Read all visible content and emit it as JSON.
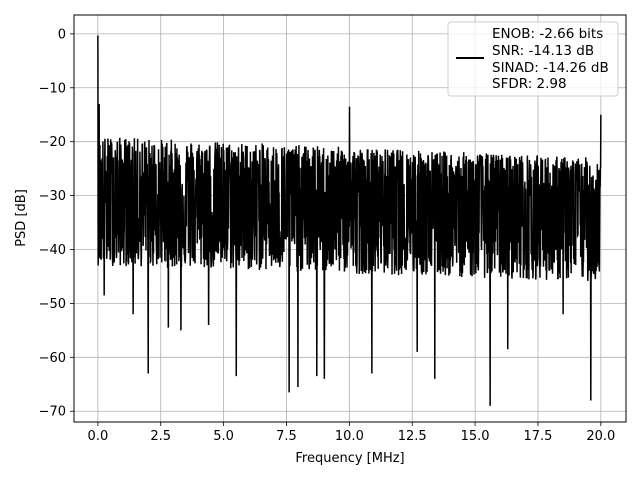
{
  "chart_data": {
    "type": "line",
    "title": "",
    "xlabel": "Frequency [MHz]",
    "ylabel": "PSD [dB]",
    "xlim": [
      -0.95,
      21.0
    ],
    "ylim": [
      -72.0,
      3.5
    ],
    "grid": true,
    "legend_position": "top-right",
    "xticks": [
      0.0,
      2.5,
      5.0,
      7.5,
      10.0,
      12.5,
      15.0,
      17.5,
      20.0
    ],
    "xtick_labels": [
      "0.0",
      "2.5",
      "5.0",
      "7.5",
      "10.0",
      "12.5",
      "15.0",
      "17.5",
      "20.0"
    ],
    "yticks": [
      0,
      -10,
      -20,
      -30,
      -40,
      -50,
      -60,
      -70
    ],
    "ytick_labels": [
      "0",
      "−10",
      "−20",
      "−30",
      "−40",
      "−50",
      "−60",
      "−70"
    ],
    "legend": [
      "ENOB: -2.66 bits",
      "SNR: -14.13 dB",
      "SINAD: -14.26 dB",
      "SFDR: 2.98"
    ],
    "series": [
      {
        "color": "#000000",
        "x_range": [
          0.0,
          20.0
        ],
        "points": 2000,
        "noise_floor": {
          "start_mean": -31,
          "end_mean": -33,
          "upper_envelope": [
            -19,
            -23
          ],
          "lower_envelope": [
            -43,
            -46
          ]
        },
        "peaks": [
          {
            "x": 0.0,
            "y": -0.3
          },
          {
            "x": 0.05,
            "y": -13
          },
          {
            "x": 10.0,
            "y": -13.5
          },
          {
            "x": 20.0,
            "y": -15
          }
        ],
        "dips": [
          {
            "x": 0.25,
            "y": -48.5
          },
          {
            "x": 1.4,
            "y": -52
          },
          {
            "x": 2.0,
            "y": -63
          },
          {
            "x": 2.8,
            "y": -54.5
          },
          {
            "x": 3.3,
            "y": -55
          },
          {
            "x": 4.4,
            "y": -54
          },
          {
            "x": 5.5,
            "y": -63.5
          },
          {
            "x": 7.6,
            "y": -66.5
          },
          {
            "x": 7.95,
            "y": -65.5
          },
          {
            "x": 8.7,
            "y": -63.5
          },
          {
            "x": 9.0,
            "y": -64
          },
          {
            "x": 10.9,
            "y": -63
          },
          {
            "x": 12.7,
            "y": -59
          },
          {
            "x": 13.4,
            "y": -64
          },
          {
            "x": 15.6,
            "y": -69
          },
          {
            "x": 16.3,
            "y": -58.5
          },
          {
            "x": 18.5,
            "y": -52
          },
          {
            "x": 19.6,
            "y": -68
          }
        ]
      }
    ]
  }
}
